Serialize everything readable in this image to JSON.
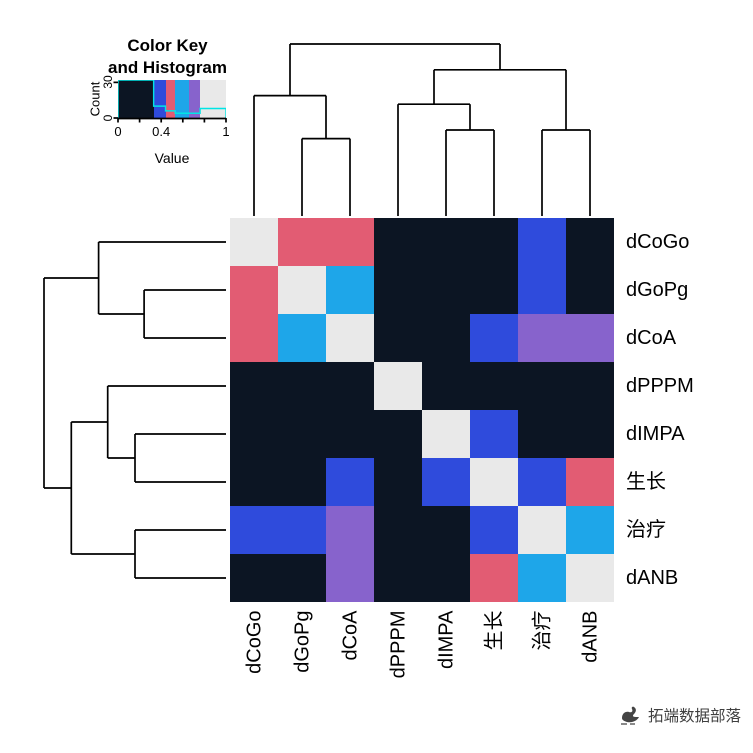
{
  "watermark": {
    "text": "拓端数据部落"
  },
  "chart_data": {
    "type": "heatmap",
    "labels": [
      "dCoGo",
      "dGoPg",
      "dCoA",
      "dPPPM",
      "dIMPA",
      "生长",
      "治疗",
      "dANB"
    ],
    "palette": {
      "z": "#0c1523",
      "b": "#2f4bdc",
      "r": "#e25c73",
      "s": "#1ea6e9",
      "p": "#8763cc",
      "d": "#e9e9e9"
    },
    "value_legend": {
      "z": 0.05,
      "b": 0.35,
      "r": 0.5,
      "s": 0.62,
      "p": 0.75,
      "d": 1.0
    },
    "matrix": [
      [
        "d",
        "r",
        "r",
        "z",
        "z",
        "z",
        "b",
        "z"
      ],
      [
        "r",
        "d",
        "s",
        "z",
        "z",
        "z",
        "b",
        "z"
      ],
      [
        "r",
        "s",
        "d",
        "z",
        "z",
        "b",
        "p",
        "p"
      ],
      [
        "z",
        "z",
        "z",
        "d",
        "z",
        "z",
        "z",
        "z"
      ],
      [
        "z",
        "z",
        "z",
        "z",
        "d",
        "b",
        "z",
        "z"
      ],
      [
        "z",
        "z",
        "b",
        "z",
        "b",
        "d",
        "b",
        "r"
      ],
      [
        "b",
        "b",
        "p",
        "z",
        "z",
        "b",
        "d",
        "s"
      ],
      [
        "z",
        "z",
        "p",
        "z",
        "z",
        "r",
        "s",
        "d"
      ]
    ],
    "dendrogram": {
      "height": 1.0,
      "children": [
        {
          "height": 0.7,
          "children": [
            {
              "leaf": 0
            },
            {
              "height": 0.45,
              "children": [
                {
                  "leaf": 1
                },
                {
                  "leaf": 2
                }
              ]
            }
          ]
        },
        {
          "height": 0.85,
          "children": [
            {
              "height": 0.65,
              "children": [
                {
                  "leaf": 3
                },
                {
                  "height": 0.5,
                  "children": [
                    {
                      "leaf": 4
                    },
                    {
                      "leaf": 5
                    }
                  ]
                }
              ]
            },
            {
              "height": 0.5,
              "children": [
                {
                  "leaf": 6
                },
                {
                  "leaf": 7
                }
              ]
            }
          ]
        }
      ]
    },
    "color_key": {
      "title_line1": "Color Key",
      "title_line2": "and Histogram",
      "xlabel": "Value",
      "ylabel": "Count",
      "xlim": [
        0,
        1
      ],
      "ylim": [
        0,
        32
      ],
      "x_tick_labels": [
        {
          "value": 0,
          "label": "0"
        },
        {
          "value": 0.4,
          "label": "0.4"
        },
        {
          "value": 1,
          "label": "1"
        }
      ],
      "x_minor_ticks": [
        0,
        0.2,
        0.4,
        0.6,
        0.8,
        1
      ],
      "y_ticks": [
        {
          "value": 0,
          "label": "0"
        },
        {
          "value": 30,
          "label": "30"
        }
      ],
      "segments": [
        {
          "color": "z",
          "from": 0,
          "to": 0.33
        },
        {
          "color": "b",
          "from": 0.33,
          "to": 0.44
        },
        {
          "color": "r",
          "from": 0.44,
          "to": 0.53
        },
        {
          "color": "s",
          "from": 0.53,
          "to": 0.66
        },
        {
          "color": "p",
          "from": 0.66,
          "to": 0.76
        },
        {
          "color": "d",
          "from": 0.76,
          "to": 1
        }
      ],
      "hist_counts": [
        32,
        10,
        6,
        4,
        4,
        8
      ],
      "trace_color": "#00e5e5"
    }
  }
}
